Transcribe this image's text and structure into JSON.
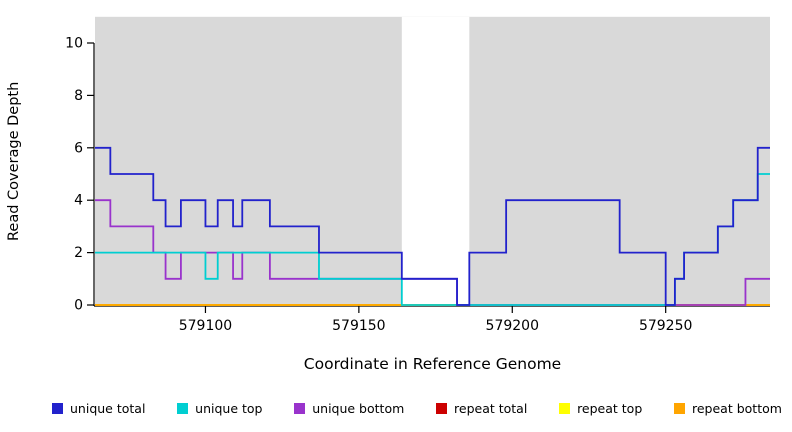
{
  "chart_data": {
    "type": "line",
    "subtype": "step-coverage",
    "title": "",
    "xlabel": "Coordinate in Reference Genome",
    "ylabel": "Read Coverage Depth",
    "xlim": [
      579064,
      579284
    ],
    "ylim": [
      0,
      11
    ],
    "x_ticks": [
      579100,
      579150,
      579200,
      579250
    ],
    "y_ticks": [
      0,
      2,
      4,
      6,
      8,
      10
    ],
    "plot_background": "#d9d9d9",
    "axis_color": "#000000",
    "gap_region": {
      "x_start": 579164,
      "x_end": 579186,
      "color": "#ffffff"
    },
    "series": [
      {
        "name": "repeat total",
        "color": "#cc0000",
        "steps": [
          [
            579064,
            0
          ]
        ]
      },
      {
        "name": "repeat top",
        "color": "#ffff00",
        "steps": [
          [
            579064,
            0
          ]
        ]
      },
      {
        "name": "repeat bottom",
        "color": "#ffa500",
        "steps": [
          [
            579064,
            0
          ]
        ]
      },
      {
        "name": "unique bottom",
        "color": "#9933cc",
        "steps": [
          [
            579064,
            4
          ],
          [
            579069,
            3
          ],
          [
            579083,
            2
          ],
          [
            579087,
            1
          ],
          [
            579092,
            2
          ],
          [
            579109,
            1
          ],
          [
            579112,
            2
          ],
          [
            579121,
            1
          ],
          [
            579182,
            0
          ],
          [
            579276,
            1
          ]
        ]
      },
      {
        "name": "unique top",
        "color": "#00ced1",
        "steps": [
          [
            579064,
            2
          ],
          [
            579100,
            1
          ],
          [
            579104,
            2
          ],
          [
            579137,
            1
          ],
          [
            579164,
            0
          ],
          [
            579253,
            1
          ],
          [
            579256,
            2
          ],
          [
            579267,
            3
          ],
          [
            579272,
            4
          ],
          [
            579280,
            5
          ]
        ]
      },
      {
        "name": "unique total",
        "color": "#2222cc",
        "steps": [
          [
            579064,
            6
          ],
          [
            579069,
            5
          ],
          [
            579083,
            4
          ],
          [
            579087,
            3
          ],
          [
            579092,
            4
          ],
          [
            579100,
            3
          ],
          [
            579104,
            4
          ],
          [
            579109,
            3
          ],
          [
            579112,
            4
          ],
          [
            579121,
            3
          ],
          [
            579137,
            2
          ],
          [
            579164,
            1
          ],
          [
            579182,
            0
          ],
          [
            579186,
            2
          ],
          [
            579198,
            4
          ],
          [
            579235,
            2
          ],
          [
            579250,
            0
          ],
          [
            579253,
            1
          ],
          [
            579256,
            2
          ],
          [
            579267,
            3
          ],
          [
            579272,
            4
          ],
          [
            579280,
            6
          ]
        ]
      }
    ]
  },
  "legend": {
    "items": [
      {
        "label": "unique total",
        "color": "#2222cc"
      },
      {
        "label": "unique top",
        "color": "#00ced1"
      },
      {
        "label": "unique bottom",
        "color": "#9933cc"
      },
      {
        "label": "repeat total",
        "color": "#cc0000"
      },
      {
        "label": "repeat top",
        "color": "#ffff00"
      },
      {
        "label": "repeat bottom",
        "color": "#ffa500"
      }
    ]
  }
}
